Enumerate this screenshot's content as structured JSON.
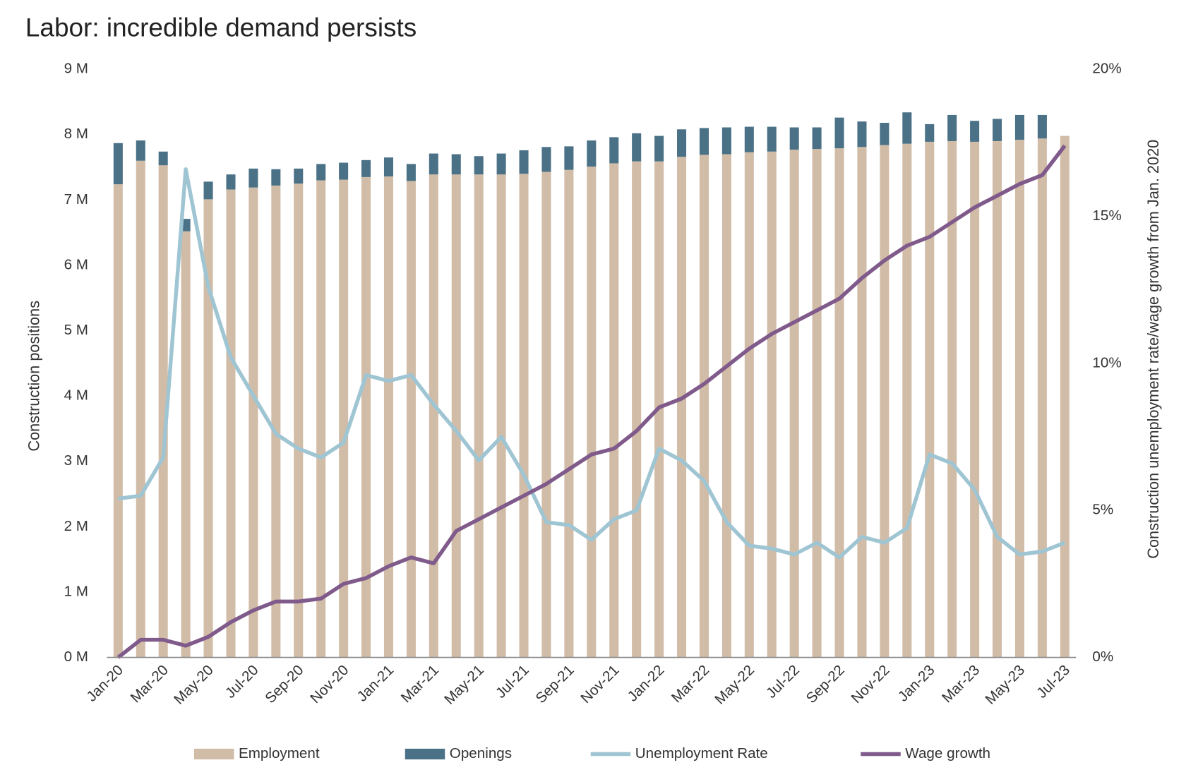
{
  "chart_data": {
    "type": "bar",
    "title": "Labor: incredible demand persists",
    "y_label": "Construction positions",
    "y2_label": "Construction unemployment rate/wage growth from Jan. 2020",
    "categories": [
      "Jan-20",
      null,
      "Mar-20",
      null,
      "May-20",
      null,
      "Jul-20",
      null,
      "Sep-20",
      null,
      "Nov-20",
      null,
      "Jan-21",
      null,
      "Mar-21",
      null,
      "May-21",
      null,
      "Jul-21",
      null,
      "Sep-21",
      null,
      "Nov-21",
      null,
      "Jan-22",
      null,
      "Mar-22",
      null,
      "May-22",
      null,
      "Jul-22",
      null,
      "Sep-22",
      null,
      "Nov-22",
      null,
      "Jan-23",
      null,
      "Mar-23",
      null,
      "May-23",
      null,
      "Jul-23"
    ],
    "series": [
      {
        "name": "Employment",
        "type": "bar",
        "stack": true,
        "color": "#d1bca8",
        "values": [
          7.24,
          7.6,
          7.53,
          6.52,
          7.01,
          7.16,
          7.19,
          7.22,
          7.25,
          7.3,
          7.31,
          7.35,
          7.36,
          7.29,
          7.39,
          7.39,
          7.39,
          7.39,
          7.4,
          7.43,
          7.46,
          7.51,
          7.56,
          7.59,
          7.59,
          7.66,
          7.69,
          7.7,
          7.73,
          7.74,
          7.77,
          7.78,
          7.79,
          7.81,
          7.84,
          7.86,
          7.89,
          7.9,
          7.89,
          7.9,
          7.92,
          7.94,
          7.98
        ]
      },
      {
        "name": "Openings",
        "type": "bar",
        "stack": true,
        "color": "#4a7186",
        "values": [
          0.63,
          0.31,
          0.21,
          0.19,
          0.27,
          0.23,
          0.29,
          0.25,
          0.23,
          0.25,
          0.26,
          0.26,
          0.29,
          0.26,
          0.32,
          0.31,
          0.28,
          0.32,
          0.36,
          0.38,
          0.36,
          0.4,
          0.4,
          0.43,
          0.39,
          0.42,
          0.41,
          0.41,
          0.39,
          0.38,
          0.34,
          0.33,
          0.47,
          0.39,
          0.34,
          0.48,
          0.27,
          0.4,
          0.32,
          0.34,
          0.38,
          0.36,
          null
        ]
      },
      {
        "name": "Unemployment Rate",
        "type": "line",
        "axis": "y2",
        "color": "#9fc5d3",
        "values": [
          5.4,
          5.5,
          6.8,
          16.6,
          12.6,
          10.2,
          8.9,
          7.6,
          7.1,
          6.8,
          7.3,
          9.6,
          9.4,
          9.6,
          8.6,
          7.7,
          6.7,
          7.5,
          6.2,
          4.6,
          4.5,
          4.0,
          4.7,
          5.0,
          7.1,
          6.7,
          6.0,
          4.6,
          3.8,
          3.7,
          3.5,
          3.9,
          3.4,
          4.1,
          3.9,
          4.4,
          6.9,
          6.6,
          5.7,
          4.1,
          3.5,
          3.6,
          3.9
        ]
      },
      {
        "name": "Wage growth",
        "type": "line",
        "axis": "y2",
        "color": "#7f5a8a",
        "values": [
          0,
          0.6,
          0.6,
          0.4,
          0.7,
          1.2,
          1.6,
          1.9,
          1.9,
          2.0,
          2.5,
          2.7,
          3.1,
          3.4,
          3.2,
          4.3,
          4.7,
          5.1,
          5.5,
          5.9,
          6.4,
          6.9,
          7.1,
          7.7,
          8.5,
          8.8,
          9.3,
          9.9,
          10.5,
          11.0,
          11.4,
          11.8,
          12.2,
          12.9,
          13.5,
          14.0,
          14.3,
          14.8,
          15.3,
          15.7,
          16.1,
          16.4,
          17.4
        ]
      }
    ],
    "ylim": [
      0,
      9
    ],
    "yticks": [
      {
        "value": 0,
        "label": "0 M"
      },
      {
        "value": 1,
        "label": "1 M"
      },
      {
        "value": 2,
        "label": "2 M"
      },
      {
        "value": 3,
        "label": "3 M"
      },
      {
        "value": 4,
        "label": "4 M"
      },
      {
        "value": 5,
        "label": "5 M"
      },
      {
        "value": 6,
        "label": "6 M"
      },
      {
        "value": 7,
        "label": "7 M"
      },
      {
        "value": 8,
        "label": "8 M"
      },
      {
        "value": 9,
        "label": "9 M"
      }
    ],
    "y2lim": [
      0,
      20
    ],
    "y2ticks": [
      {
        "value": 0,
        "label": "0%"
      },
      {
        "value": 5,
        "label": "5%"
      },
      {
        "value": 10,
        "label": "10%"
      },
      {
        "value": 15,
        "label": "15%"
      },
      {
        "value": 20,
        "label": "20%"
      }
    ],
    "grid": false,
    "legend": "bottom"
  }
}
